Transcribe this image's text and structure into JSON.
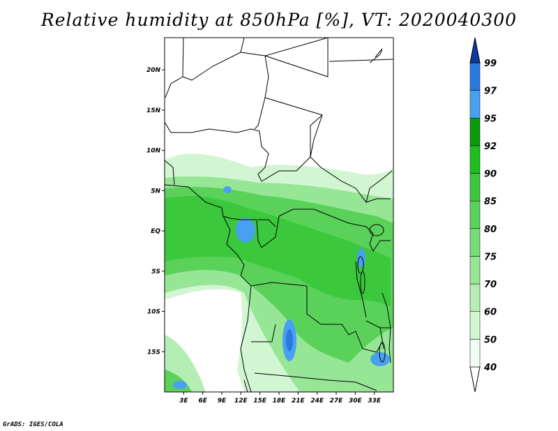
{
  "title": "Relative humidity at 850hPa [%], VT: 2020040300",
  "credit": "GrADS: IGES/COLA",
  "map": {
    "lon_range": [
      0,
      36
    ],
    "lat_range": [
      -20,
      24
    ],
    "lon_ticks": [
      {
        "value": 3,
        "label": "3E"
      },
      {
        "value": 6,
        "label": "6E"
      },
      {
        "value": 9,
        "label": "9E"
      },
      {
        "value": 12,
        "label": "12E"
      },
      {
        "value": 15,
        "label": "15E"
      },
      {
        "value": 18,
        "label": "18E"
      },
      {
        "value": 21,
        "label": "21E"
      },
      {
        "value": 24,
        "label": "24E"
      },
      {
        "value": 27,
        "label": "27E"
      },
      {
        "value": 30,
        "label": "30E"
      },
      {
        "value": 33,
        "label": "33E"
      }
    ],
    "lat_ticks": [
      {
        "value": 20,
        "label": "20N"
      },
      {
        "value": 15,
        "label": "15N"
      },
      {
        "value": 10,
        "label": "10N"
      },
      {
        "value": 5,
        "label": "5N"
      },
      {
        "value": 0,
        "label": "EQ"
      },
      {
        "value": -5,
        "label": "5S"
      },
      {
        "value": -10,
        "label": "10S"
      },
      {
        "value": -15,
        "label": "15S"
      }
    ]
  },
  "colorbar": {
    "levels": [
      "40",
      "50",
      "60",
      "70",
      "75",
      "80",
      "85",
      "90",
      "92",
      "95",
      "97",
      "99"
    ],
    "colors": [
      "#f0fcf0",
      "#d2f5d2",
      "#b4eeb4",
      "#96e696",
      "#78dc78",
      "#5ad25a",
      "#3cc83c",
      "#1ebe1e",
      "#0a9a0a",
      "#4aa0f0",
      "#2a78e0",
      "#1450c8",
      "#0a3aa0"
    ]
  },
  "colors": {
    "water": "#2a6ee6",
    "border": "#000000"
  }
}
